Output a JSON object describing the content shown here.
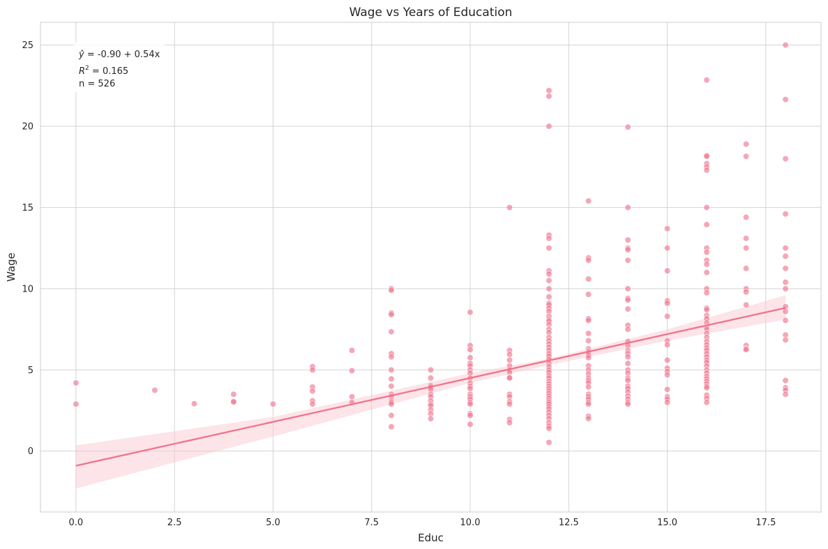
{
  "chart_data": {
    "type": "scatter",
    "title": "Wage vs Years of Education",
    "xlabel": "Educ",
    "ylabel": "Wage",
    "xlim": [
      -0.9,
      18.9
    ],
    "ylim": [
      -3.75,
      26.4
    ],
    "xticks": [
      "0.0",
      "2.5",
      "5.0",
      "7.5",
      "10.0",
      "12.5",
      "15.0",
      "17.5"
    ],
    "xtick_values": [
      0,
      2.5,
      5,
      7.5,
      10,
      12.5,
      15,
      17.5
    ],
    "yticks": [
      "0",
      "5",
      "10",
      "15",
      "20",
      "25"
    ],
    "ytick_values": [
      0,
      5,
      10,
      15,
      20,
      25
    ],
    "grid": true,
    "colors": {
      "points": "#f07891",
      "line": "#f07388",
      "band": "#f9c9d4",
      "grid": "#d3d3d3"
    },
    "annotation": {
      "line1_hat": "ŷ",
      "line1_rest": " = -0.90 + 0.54x",
      "line2_r": "R",
      "line2_sup": "2",
      "line2_rest": " = 0.165",
      "line3": "n = 526"
    },
    "regression": {
      "intercept": -0.9,
      "slope": 0.54,
      "x_range": [
        0,
        18
      ]
    },
    "confidence_band": {
      "x": [
        0,
        5,
        10,
        12,
        15,
        18
      ],
      "lower": [
        -2.3,
        0.9,
        4.2,
        5.3,
        6.8,
        8.1
      ],
      "upper": [
        0.35,
        2.1,
        4.8,
        5.7,
        7.5,
        9.6
      ]
    },
    "points": {
      "0": [
        4.2,
        2.9
      ],
      "2": [
        3.75
      ],
      "3": [
        2.92
      ],
      "4": [
        3.5,
        3.0,
        3.05
      ],
      "5": [
        2.9
      ],
      "6": [
        5.2,
        5.0,
        3.95,
        3.7,
        3.1,
        2.9
      ],
      "7": [
        6.2,
        4.95,
        3.35,
        3.0
      ],
      "8": [
        10.0,
        9.9,
        8.5,
        8.4,
        7.35,
        6.0,
        5.8,
        5.0,
        4.45,
        4.0,
        3.5,
        3.35,
        3.1,
        3.0,
        2.9,
        2.2,
        1.5
      ],
      "9": [
        5.0,
        4.5,
        4.05,
        3.95,
        3.8,
        3.5,
        3.35,
        3.1,
        2.9,
        2.8,
        2.55,
        2.3,
        2.0
      ],
      "10": [
        8.55,
        6.5,
        6.25,
        5.75,
        5.4,
        5.25,
        5.0,
        4.8,
        4.5,
        4.2,
        4.0,
        3.85,
        3.5,
        3.35,
        3.2,
        3.0,
        2.9,
        2.3,
        2.2,
        1.65
      ],
      "11": [
        15.0,
        6.2,
        5.95,
        5.6,
        5.25,
        5.0,
        4.85,
        4.55,
        4.5,
        3.5,
        3.35,
        3.05,
        2.9,
        1.95,
        1.75
      ],
      "12": [
        22.2,
        21.85,
        20.0,
        13.3,
        13.1,
        12.5,
        11.1,
        10.9,
        10.5,
        10.0,
        9.5,
        9.1,
        9.0,
        8.8,
        8.6,
        8.3,
        8.1,
        8.0,
        7.8,
        7.5,
        7.3,
        7.0,
        6.8,
        6.6,
        6.4,
        6.2,
        6.0,
        5.85,
        5.65,
        5.4,
        5.2,
        5.0,
        4.85,
        4.65,
        4.5,
        4.3,
        4.15,
        4.0,
        3.85,
        3.7,
        3.55,
        3.4,
        3.25,
        3.1,
        3.0,
        2.9,
        2.75,
        2.6,
        2.4,
        2.2,
        2.0,
        1.75,
        1.55,
        1.4,
        0.53
      ],
      "13": [
        15.4,
        11.9,
        11.75,
        10.6,
        9.65,
        8.15,
        8.05,
        7.25,
        6.8,
        6.3,
        6.15,
        6.05,
        5.9,
        5.75,
        5.25,
        5.0,
        4.75,
        4.5,
        4.35,
        4.2,
        3.95,
        3.5,
        3.35,
        3.2,
        3.0,
        2.9,
        2.15,
        2.0
      ],
      "14": [
        19.95,
        15.0,
        13.0,
        12.5,
        12.4,
        11.75,
        10.0,
        9.4,
        9.3,
        8.75,
        7.75,
        7.5,
        6.75,
        6.5,
        6.2,
        6.0,
        5.8,
        5.4,
        5.0,
        4.8,
        4.5,
        4.35,
        4.0,
        3.85,
        3.65,
        3.4,
        3.2,
        3.0,
        2.9
      ],
      "15": [
        13.7,
        12.5,
        11.1,
        9.25,
        9.1,
        8.3,
        6.8,
        6.55,
        5.6,
        5.1,
        4.9,
        4.7,
        3.8,
        3.35,
        3.2,
        3.0
      ],
      "16": [
        22.85,
        18.2,
        18.15,
        17.7,
        17.5,
        17.3,
        15.0,
        13.95,
        12.5,
        12.25,
        11.75,
        11.5,
        11.0,
        10.0,
        9.75,
        8.8,
        8.7,
        8.35,
        8.15,
        7.9,
        7.65,
        7.5,
        7.25,
        7.0,
        6.75,
        6.55,
        6.35,
        6.2,
        6.0,
        5.8,
        5.6,
        5.45,
        5.25,
        5.0,
        4.8,
        4.6,
        4.45,
        4.3,
        4.15,
        4.0,
        3.9,
        3.45,
        3.25,
        3.0
      ],
      "17": [
        18.9,
        18.15,
        14.4,
        13.1,
        12.5,
        11.25,
        10.0,
        9.8,
        9.0,
        6.5,
        6.3,
        6.25
      ],
      "18": [
        25.0,
        21.65,
        18.0,
        14.6,
        12.5,
        12.0,
        11.25,
        10.4,
        10.0,
        8.9,
        8.6,
        8.05,
        7.15,
        6.85,
        4.35,
        3.9,
        3.75,
        3.5
      ]
    }
  }
}
